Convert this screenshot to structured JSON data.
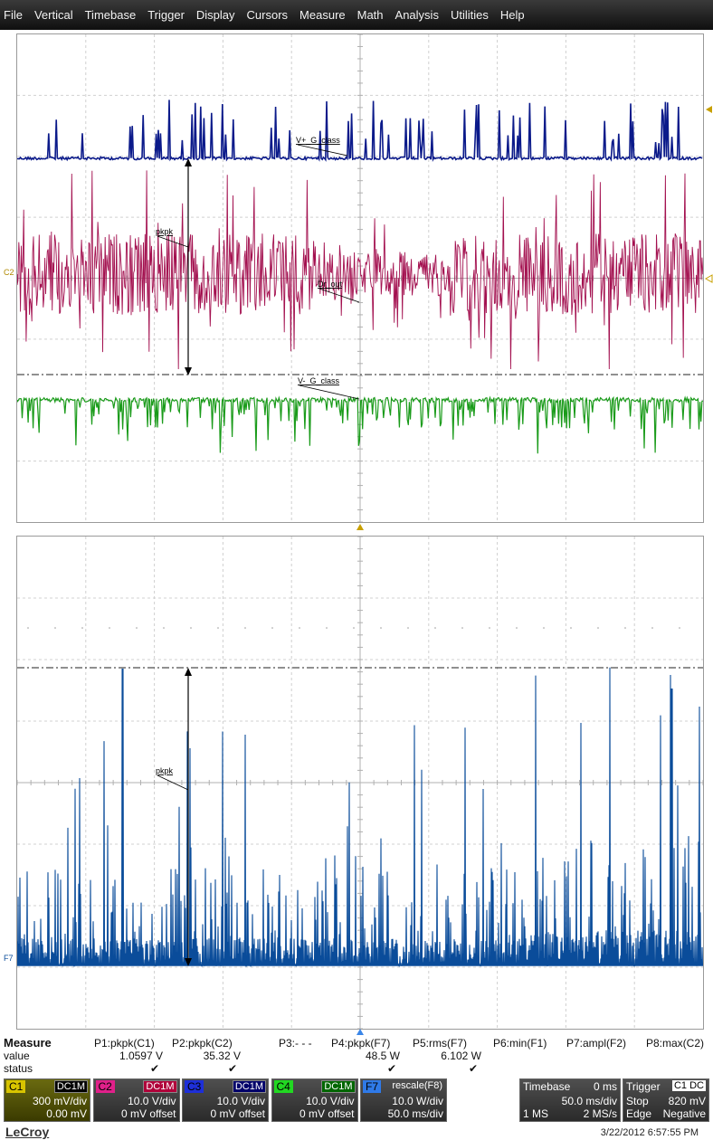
{
  "menu": [
    "File",
    "Vertical",
    "Timebase",
    "Trigger",
    "Display",
    "Cursors",
    "Measure",
    "Math",
    "Analysis",
    "Utilities",
    "Help"
  ],
  "traces": {
    "c1_label": "V+_G_class",
    "c2_label": "Dr_out",
    "c4_label": "V-_G_class",
    "pkpk_label_top": "pkpk",
    "pkpk_label_bottom": "pkpk",
    "left_tag_top": "C2",
    "left_tag_bottom": "F7"
  },
  "colors": {
    "c1": "#0b1a8a",
    "c2": "#a3104f",
    "c4": "#1a9b1a",
    "f7": "#0a4c9a",
    "trigger": "#c8a000"
  },
  "measure": {
    "header": "Measure",
    "row_labels": [
      "value",
      "status"
    ],
    "params": [
      {
        "name": "P1:pkpk(C1)",
        "value": "1.0597 V",
        "status": "✔"
      },
      {
        "name": "P2:pkpk(C2)",
        "value": "35.32 V",
        "status": "✔"
      },
      {
        "name": "P3:- - -",
        "value": "",
        "status": ""
      },
      {
        "name": "P4:pkpk(F7)",
        "value": "48.5 W",
        "status": "✔"
      },
      {
        "name": "P5:rms(F7)",
        "value": "6.102 W",
        "status": "✔"
      },
      {
        "name": "P6:min(F1)",
        "value": "",
        "status": ""
      },
      {
        "name": "P7:ampl(F2)",
        "value": "",
        "status": ""
      },
      {
        "name": "P8:max(C2)",
        "value": "",
        "status": ""
      }
    ]
  },
  "channels": [
    {
      "tag": "C1",
      "coupling": "DC1M",
      "line2": "300 mV/div",
      "line3": "0.00 mV"
    },
    {
      "tag": "C2",
      "coupling": "DC1M",
      "line2": "10.0 V/div",
      "line3": "0 mV offset"
    },
    {
      "tag": "C3",
      "coupling": "DC1M",
      "line2": "10.0 V/div",
      "line3": "0 mV offset"
    },
    {
      "tag": "C4",
      "coupling": "DC1M",
      "line2": "10.0 V/div",
      "line3": "0 mV offset"
    },
    {
      "tag": "F7",
      "coupling": "rescale(F8)",
      "line2": "10.0 W/div",
      "line3": "50.0 ms/div"
    }
  ],
  "timebase": {
    "title": "Timebase",
    "delay": "0 ms",
    "div": "50.0 ms/div",
    "points": "1 MS",
    "rate": "2 MS/s"
  },
  "trigger": {
    "title": "Trigger",
    "source": "C1",
    "coupling": "DC",
    "mode": "Stop",
    "level": "820 mV",
    "type": "Edge",
    "slope": "Negative"
  },
  "brand": "LeCroy",
  "datetime": "3/22/2012 6:57:55 PM"
}
